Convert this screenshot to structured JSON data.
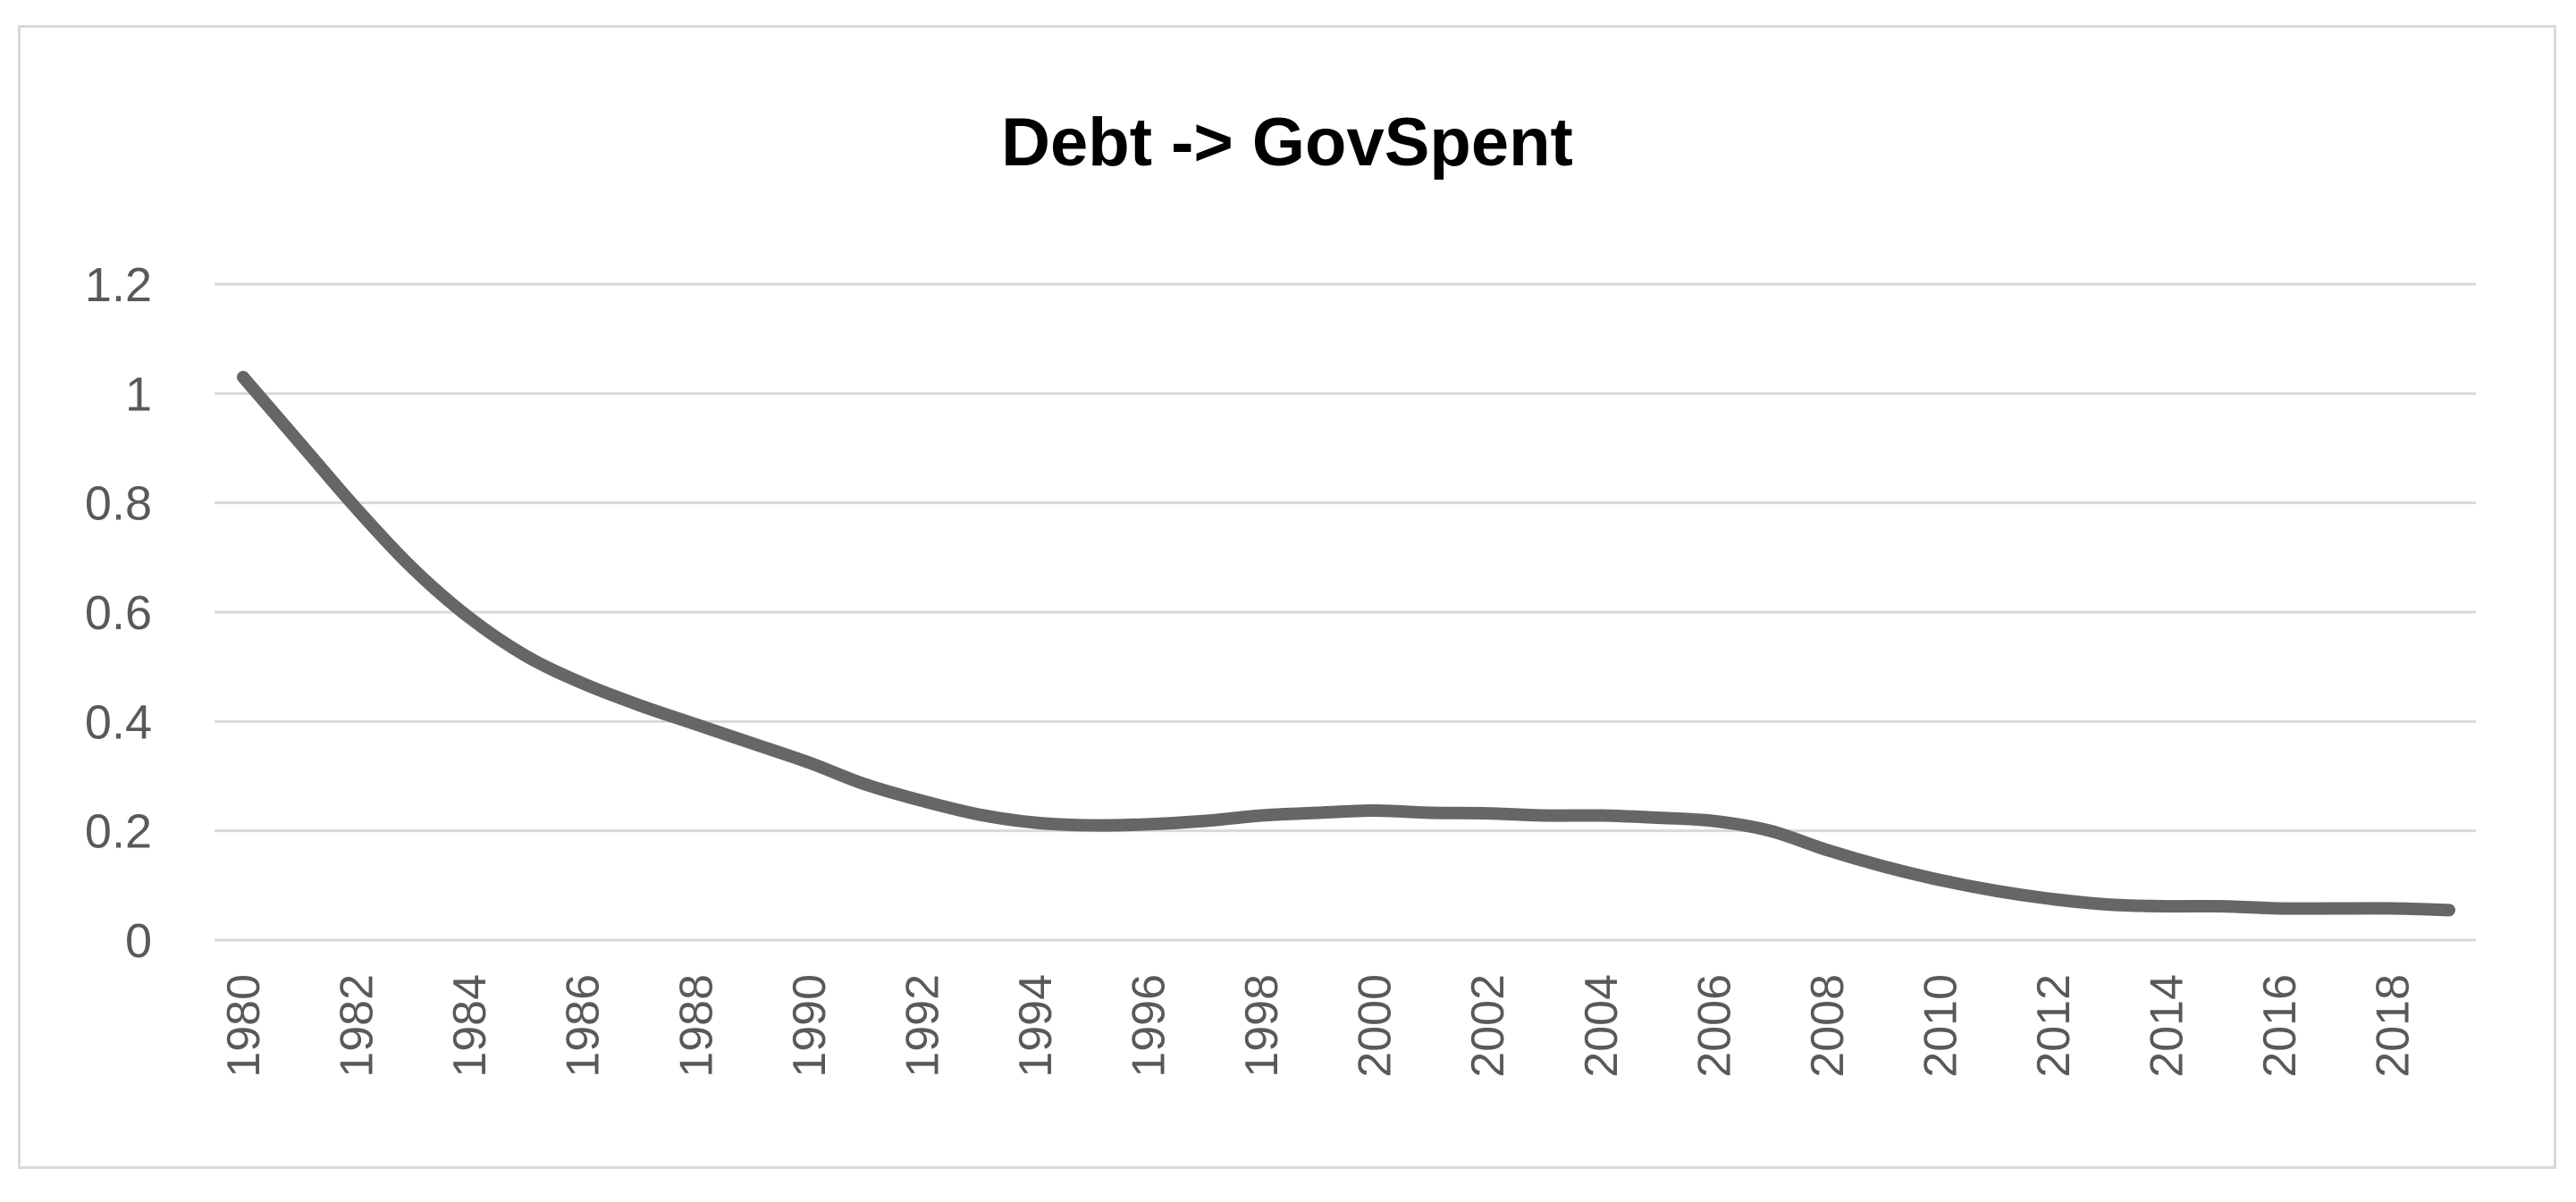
{
  "chart_data": {
    "type": "line",
    "title": "Debt -> GovSpent",
    "xlabel": "",
    "ylabel": "",
    "ylim": [
      0,
      1.2
    ],
    "yticks": [
      "0",
      "0.2",
      "0.4",
      "0.6",
      "0.8",
      "1",
      "1.2"
    ],
    "xticks": [
      "1980",
      "1982",
      "1984",
      "1986",
      "1988",
      "1990",
      "1992",
      "1994",
      "1996",
      "1998",
      "2000",
      "2002",
      "2004",
      "2006",
      "2008",
      "2010",
      "2012",
      "2014",
      "2016",
      "2018"
    ],
    "grid": true,
    "legend": "none",
    "line_color": "#666666",
    "series": [
      {
        "x": [
          1980,
          1981,
          1982,
          1983,
          1984,
          1985,
          1986,
          1987,
          1988,
          1989,
          1990,
          1991,
          1992,
          1993,
          1994,
          1995,
          1996,
          1997,
          1998,
          1999,
          2000,
          2001,
          2002,
          2003,
          2004,
          2005,
          2006,
          2007,
          2008,
          2009,
          2010,
          2011,
          2012,
          2013,
          2014,
          2015,
          2016,
          2017,
          2018,
          2019
        ],
        "values": [
          1.03,
          0.91,
          0.79,
          0.68,
          0.59,
          0.52,
          0.47,
          0.43,
          0.395,
          0.36,
          0.325,
          0.285,
          0.255,
          0.23,
          0.215,
          0.21,
          0.212,
          0.218,
          0.228,
          0.233,
          0.237,
          0.233,
          0.232,
          0.228,
          0.228,
          0.224,
          0.218,
          0.2,
          0.165,
          0.135,
          0.11,
          0.09,
          0.075,
          0.065,
          0.062,
          0.062,
          0.058,
          0.058,
          0.058,
          0.055
        ]
      }
    ]
  }
}
